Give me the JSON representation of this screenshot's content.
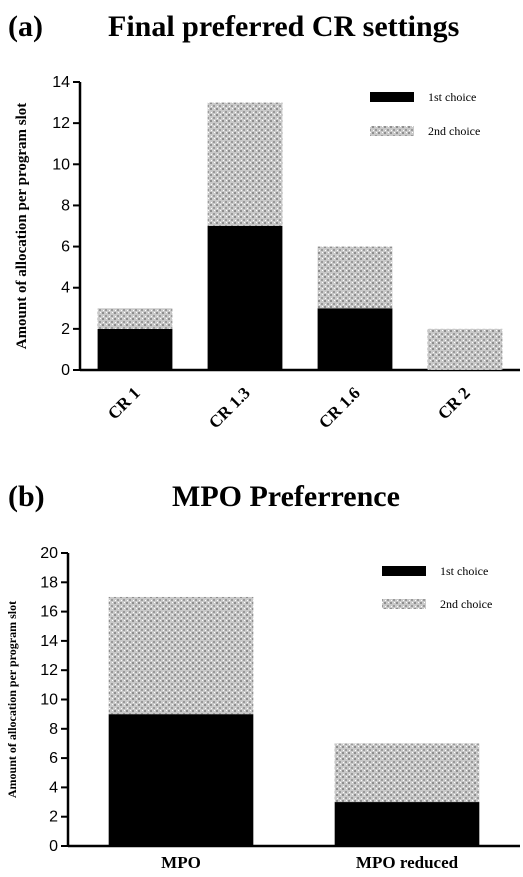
{
  "panels": [
    {
      "letter": "(a)",
      "title": "Final preferred CR settings"
    },
    {
      "letter": "(b)",
      "title": "MPO Preferrence"
    }
  ],
  "chart_data": [
    {
      "type": "bar",
      "stacked": true,
      "title": "Final preferred CR settings",
      "ylabel": "Amount of allocation per program slot",
      "xlabel": "",
      "categories": [
        "CR 1",
        "CR 1.3",
        "CR 1.6",
        "CR 2"
      ],
      "ylim": [
        0,
        14
      ],
      "yticks": [
        0,
        2,
        4,
        6,
        8,
        10,
        12,
        14
      ],
      "category_label_rotation": "diagonal",
      "legend_position": "top-right",
      "grid": false,
      "series": [
        {
          "name": "1st choice",
          "values": [
            2,
            7,
            3,
            0
          ],
          "color": "#000000",
          "fill": "solid"
        },
        {
          "name": "2nd choice",
          "values": [
            1,
            6,
            3,
            2
          ],
          "color": "#b8b8b8",
          "fill": "stippled"
        }
      ]
    },
    {
      "type": "bar",
      "stacked": true,
      "title": "MPO Preferrence",
      "ylabel": "Amount of allocation per program slot",
      "xlabel": "",
      "categories": [
        "MPO",
        "MPO reduced"
      ],
      "ylim": [
        0,
        20
      ],
      "yticks": [
        0,
        2,
        4,
        6,
        8,
        10,
        12,
        14,
        16,
        18,
        20
      ],
      "legend_position": "top-right",
      "grid": false,
      "series": [
        {
          "name": "1st choice",
          "values": [
            9,
            3
          ],
          "color": "#000000",
          "fill": "solid"
        },
        {
          "name": "2nd choice",
          "values": [
            8,
            4
          ],
          "color": "#b8b8b8",
          "fill": "stippled"
        }
      ]
    }
  ]
}
